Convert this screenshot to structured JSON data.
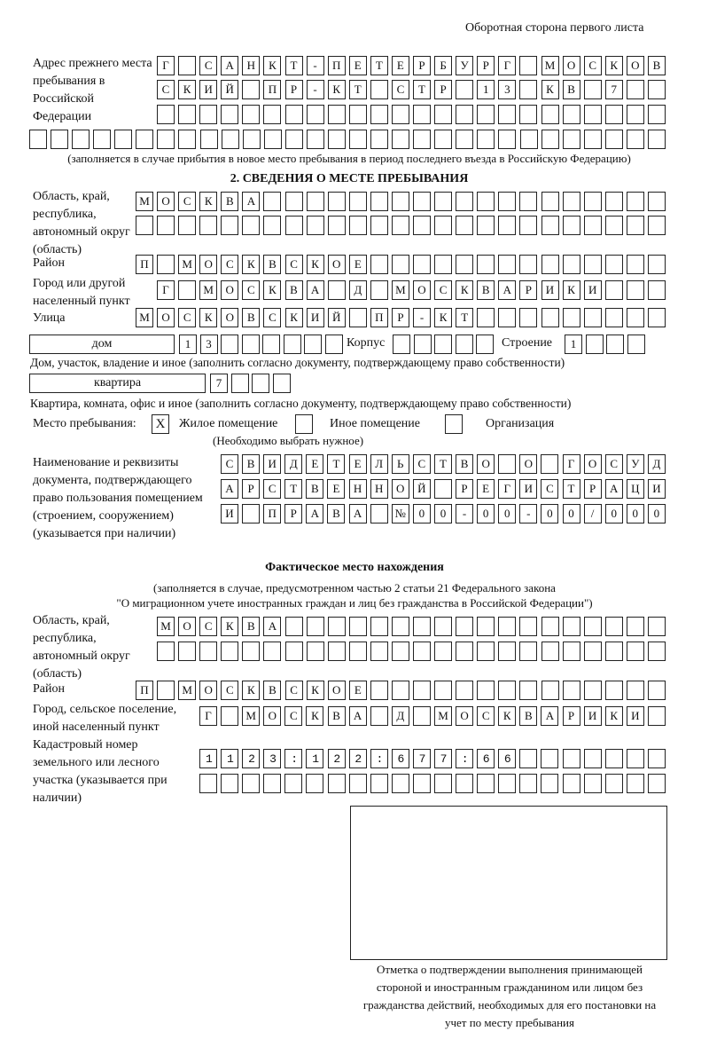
{
  "header": "Оборотная сторона первого листа",
  "prev_address": {
    "label": "Адрес прежнего места пребывания в Российской Федерации",
    "rows": [
      "Г САНКТ-ПЕТЕРБУРГ МОСКОВ",
      "СКИЙ ПР-КТ СТР 13 КВ 7",
      "",
      ""
    ],
    "note": "(заполняется в случае прибытия в новое место пребывания в период последнего въезда в Российскую Федерацию)"
  },
  "section2": {
    "title": "2. СВЕДЕНИЯ О МЕСТЕ ПРЕБЫВАНИЯ",
    "region_label": "Область, край, республика, автономный округ (область)",
    "region_rows": [
      "МОСКВА",
      ""
    ],
    "district_label": "Район",
    "district": "П МОСКВСКОЕ",
    "city_label": "Город или другой населенный пункт",
    "city": "Г МОСКВА Д МОСКВАРИКИ",
    "street_label": "Улица",
    "street": "МОСКОВСКИЙ ПР-КТ",
    "house_type": "дом",
    "house": "13",
    "korpus_label": "Корпус",
    "korpus": "",
    "stroenie_label": "Строение",
    "stroenie": "1",
    "house_note": "Дом, участок, владение и иное (заполнить согласно документу, подтверждающему право собственности)",
    "flat_type": "квартира",
    "flat": "7",
    "flat_note": "Квартира, комната, офис и иное (заполнить согласно документу, подтверждающему право собственности)",
    "place_label": "Место пребывания:",
    "options": [
      {
        "label": "Жилое помещение",
        "checked": true,
        "mark": "X"
      },
      {
        "label": "Иное помещение",
        "checked": false,
        "mark": ""
      },
      {
        "label": "Организация",
        "checked": false,
        "mark": ""
      }
    ],
    "choose_note": "(Необходимо выбрать нужное)",
    "doc_label": "Наименование и реквизиты документа, подтверждающего право пользования помещением (строением, сооружением) (указывается при наличии)",
    "doc_rows": [
      "СВИДЕТЕЛЬСТВО О ГОСУД",
      "АРСТВЕННОЙ РЕГИСТРАЦИ",
      "И ПРАВА №00-00-00/000"
    ]
  },
  "actual": {
    "title": "Фактическое место нахождения",
    "note1": "(заполняется в случае, предусмотренном частью 2 статьи 21 Федерального закона",
    "note2": "\"О миграционном учете иностранных граждан и лиц без гражданства в Российской Федерации\")",
    "region_label": "Область, край, республика, автономный округ (область)",
    "region_rows": [
      "МОСКВА",
      ""
    ],
    "district_label": "Район",
    "district": "П МОСКВСКОЕ",
    "city_label": "Город, сельское поселение, иной населенный пункт",
    "city": "Г МОСКВА Д МОСКВАРИКИ",
    "cadastre_label": "Кадастровый номер земельного или лесного участка (указывается при наличии)",
    "cadastre_rows": [
      "1123:122:677:66",
      ""
    ]
  },
  "stamp_caption": "Отметка о подтверждении выполнения принимающей стороной и иностранным гражданином или лицом без гражданства действий, необходимых для его постановки на учет по месту пребывания"
}
